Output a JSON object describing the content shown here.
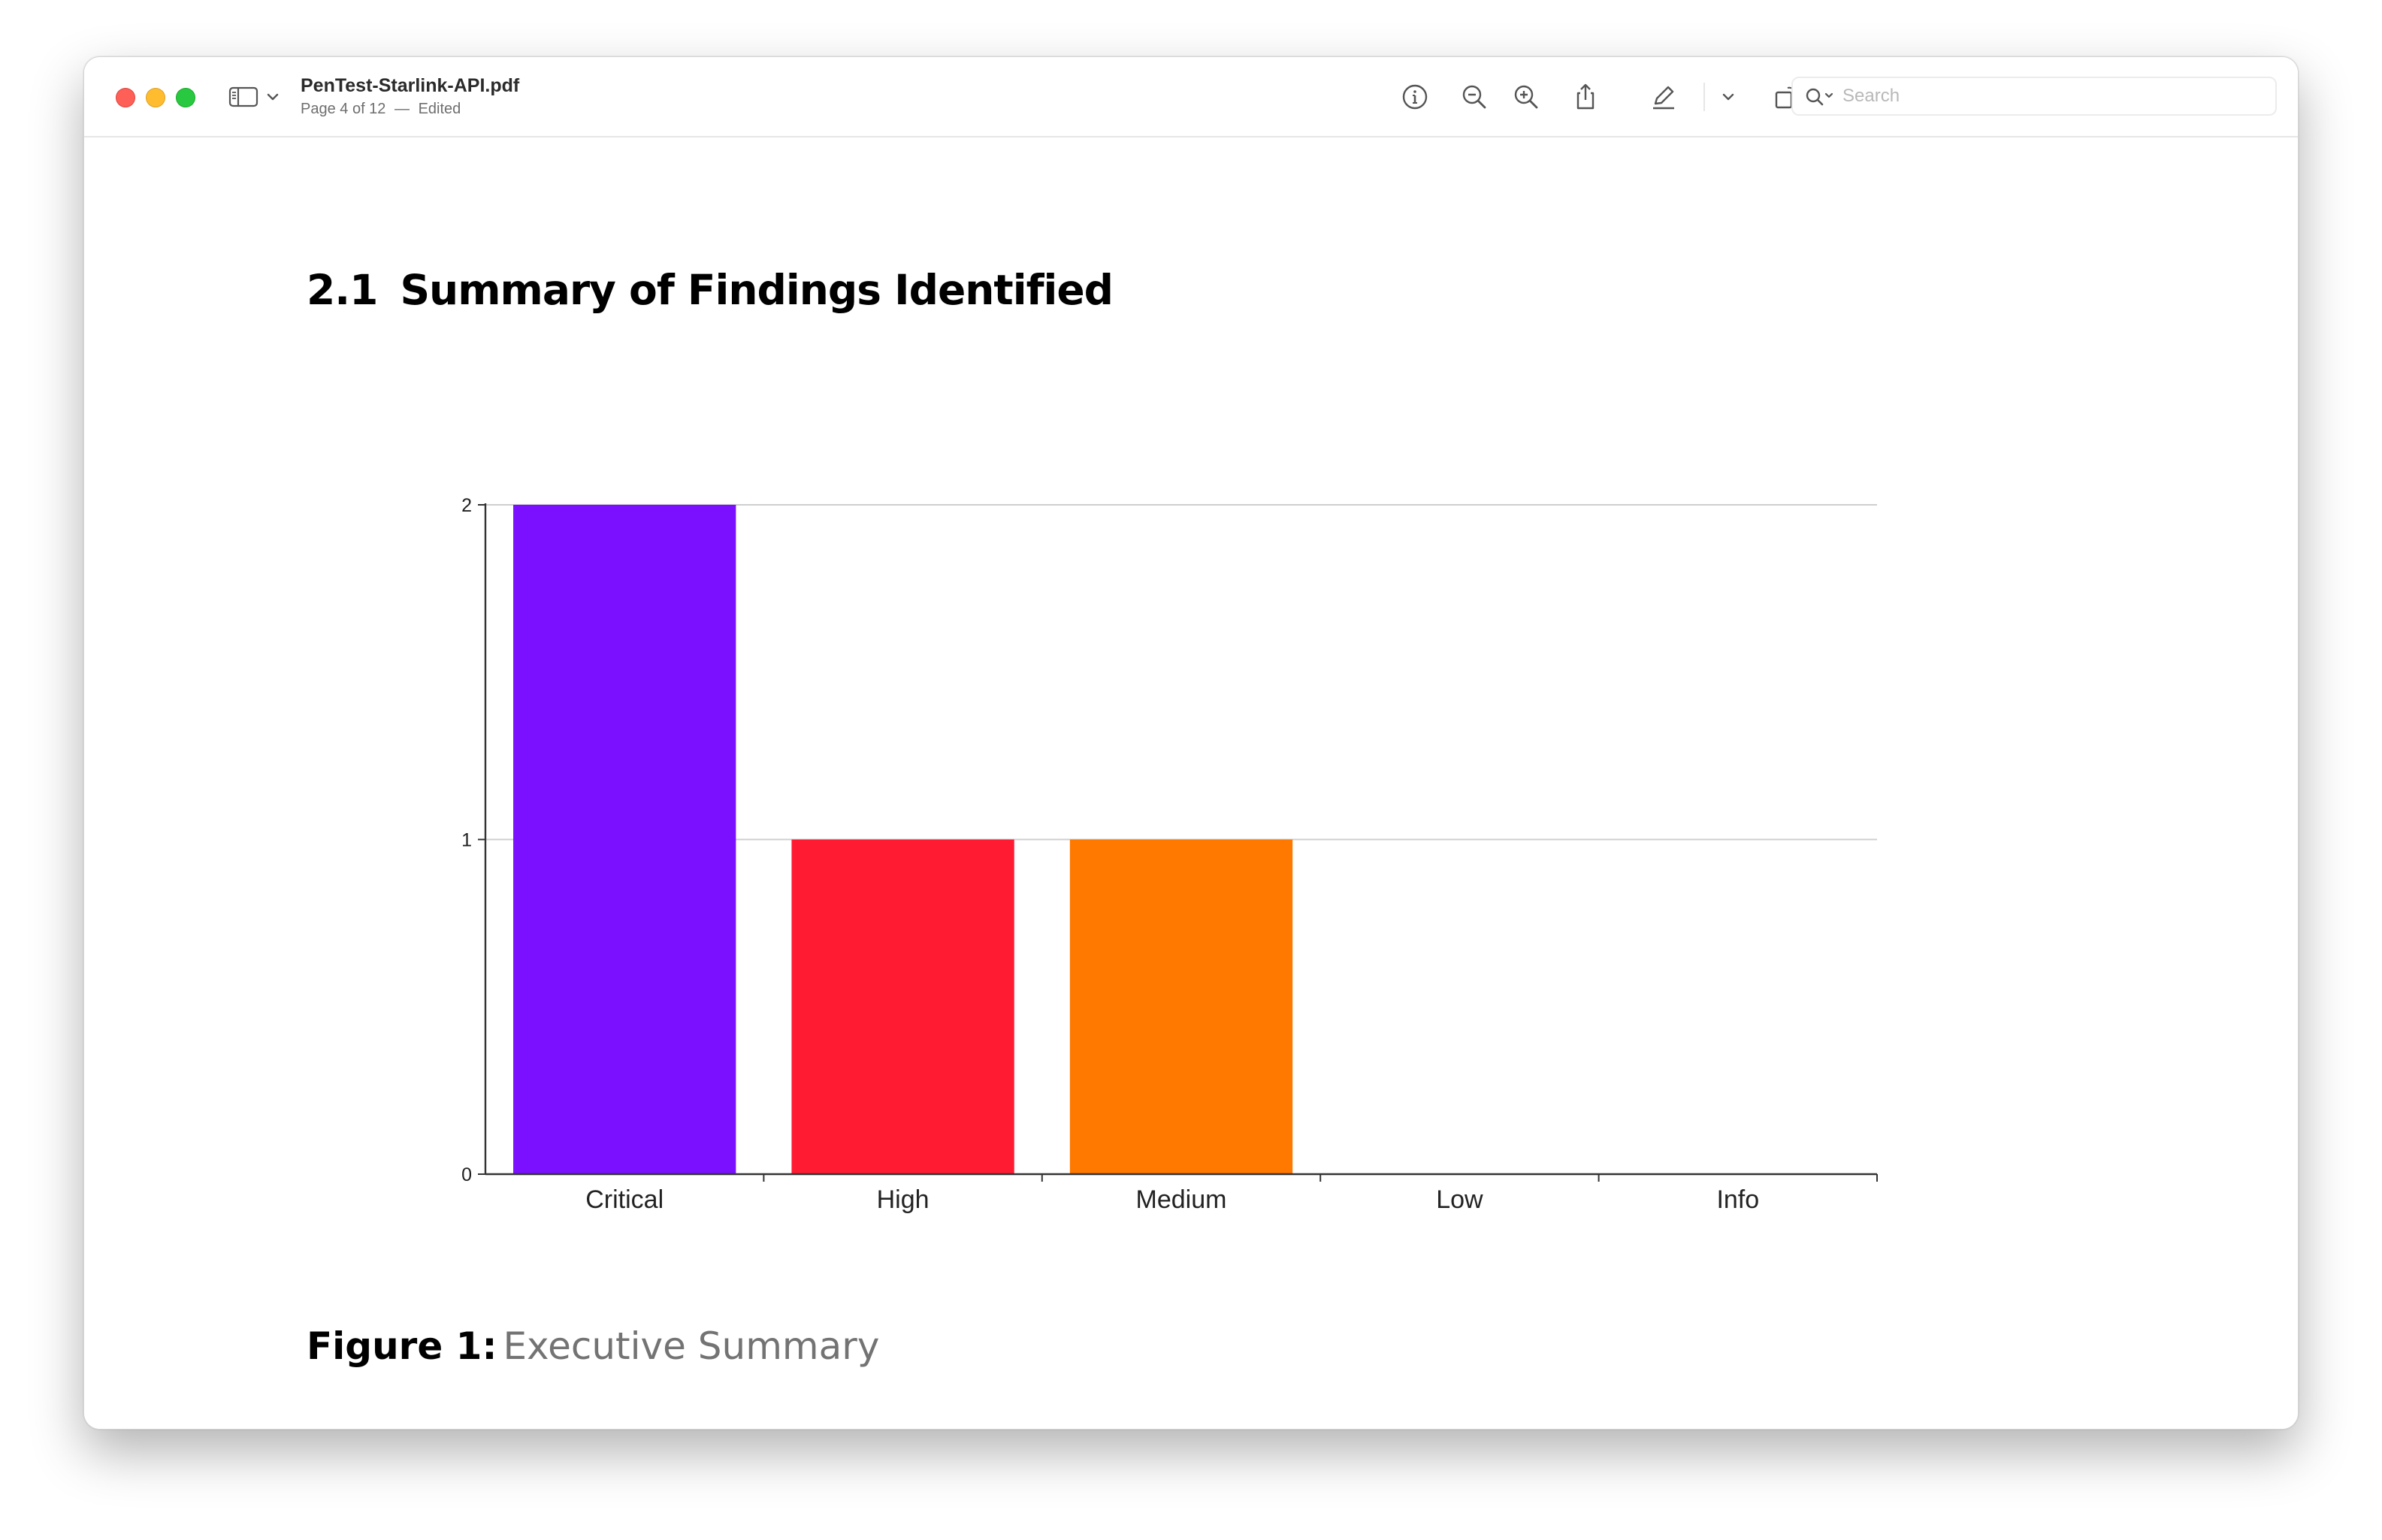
{
  "window": {
    "file_name": "PenTest-Starlink-API.pdf",
    "page_status": "Page 4 of 12",
    "edited_status": "Edited",
    "separator": "—"
  },
  "toolbar": {
    "icons": [
      "info-icon",
      "zoom-out-icon",
      "zoom-in-icon",
      "share-icon",
      "markup-pen-icon",
      "chevron-down-icon",
      "rotate-icon",
      "annotate-icon"
    ],
    "search_placeholder": "Search"
  },
  "document": {
    "section_number": "2.1",
    "section_title": "Summary of Findings Identified",
    "caption_label": "Figure 1:",
    "caption_text": "Executive Summary"
  },
  "chart_data": {
    "type": "bar",
    "categories": [
      "Critical",
      "High",
      "Medium",
      "Low",
      "Info"
    ],
    "values": [
      2,
      1,
      1,
      0,
      0
    ],
    "colors": [
      "#7a10ff",
      "#ff1c33",
      "#ff7800",
      "#6e6e6e",
      "#6e6e6e"
    ],
    "ylim": [
      0,
      2
    ],
    "yticks": [
      0,
      1,
      2
    ],
    "grid": true,
    "title": "",
    "xlabel": "",
    "ylabel": ""
  }
}
